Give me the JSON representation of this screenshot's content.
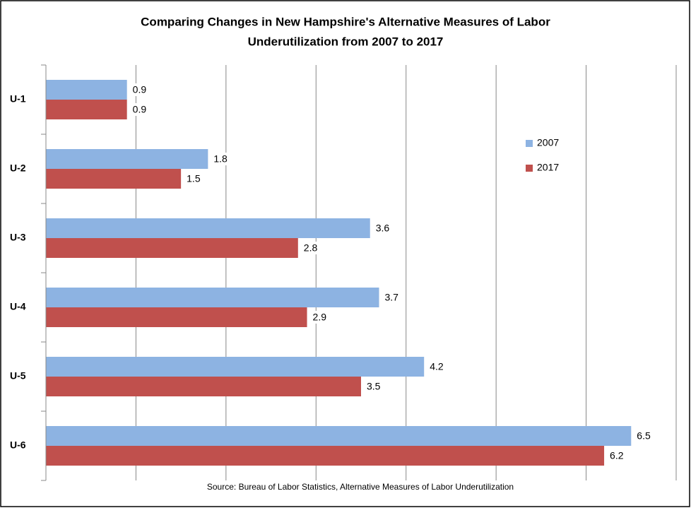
{
  "chart_data": {
    "type": "hbar",
    "title": [
      "Comparing Changes in New Hampshire's Alternative Measures of Labor",
      "Underutilization from 2007 to 2017"
    ],
    "source": "Source: Bureau of Labor Statistics, Alternative Measures of Labor Underutilization",
    "categories": [
      "U-1",
      "U-2",
      "U-3",
      "U-4",
      "U-5",
      "U-6"
    ],
    "series": [
      {
        "name": "2007",
        "color": "#8db3e2",
        "values": [
          0.9,
          1.8,
          3.6,
          3.7,
          4.2,
          6.5
        ]
      },
      {
        "name": "2017",
        "color": "#c0504d",
        "values": [
          0.9,
          1.5,
          2.8,
          2.9,
          3.5,
          6.2
        ]
      }
    ],
    "xlim": [
      0,
      7
    ],
    "xticks": [
      0,
      1,
      2,
      3,
      4,
      5,
      6,
      7
    ],
    "grid": true,
    "legend": "right"
  }
}
